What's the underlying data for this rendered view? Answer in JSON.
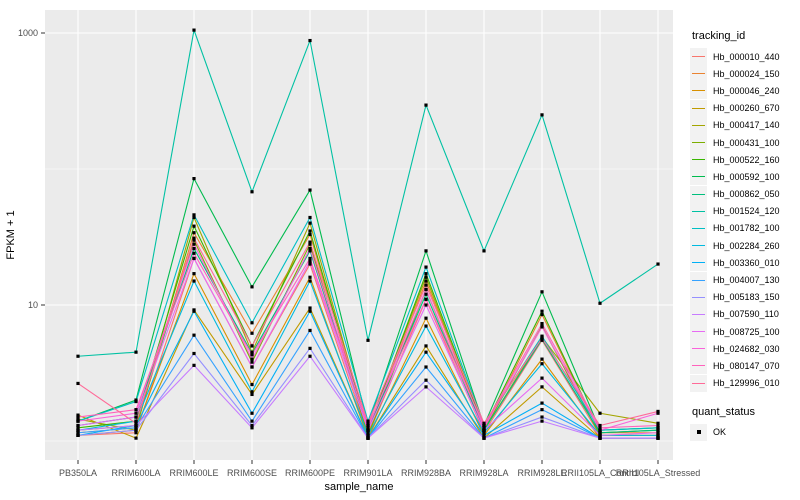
{
  "chart_data": {
    "type": "line",
    "title": "",
    "xlabel": "sample_name",
    "ylabel": "FPKM + 1",
    "y_scale": "log10",
    "ylim": [
      1,
      1480
    ],
    "y_ticks": [
      {
        "value": 10,
        "label": "10"
      },
      {
        "value": 1000,
        "label": "1000"
      }
    ],
    "y_minor_gridlines": [
      1,
      100
    ],
    "grid": true,
    "panel_bg": "#EBEBEB",
    "grid_color": "#FFFFFF",
    "tick_label_color": "#4D4D4D",
    "point_color": "#000000",
    "legend_position": "right",
    "categories": [
      "PB350LA",
      "RRIM600LA",
      "RRIM600LE",
      "RRIM600SE",
      "RRIM600PE",
      "RRIM901LA",
      "RRIM928BA",
      "RRIM928LA",
      "RRIM928LE",
      "RRII105LA_Control",
      "RRII105LA_Stressed"
    ],
    "series": [
      {
        "name": "Hb_000010_440",
        "color": "#F8766D",
        "values": [
          1.1,
          1.15,
          22,
          3.5,
          20,
          1.1,
          11,
          1.15,
          5.5,
          1.1,
          1.1
        ]
      },
      {
        "name": "Hb_000024_150",
        "color": "#EA8331",
        "values": [
          1.15,
          1.25,
          34,
          6.2,
          33,
          1.15,
          15,
          1.2,
          8.5,
          1.15,
          1.15
        ]
      },
      {
        "name": "Hb_000046_240",
        "color": "#D89000",
        "values": [
          1.1,
          1.2,
          17,
          2.6,
          16,
          1.05,
          8.0,
          1.1,
          4.0,
          1.05,
          1.05
        ]
      },
      {
        "name": "Hb_000260_670",
        "color": "#C09B00",
        "values": [
          1.55,
          1.05,
          9.2,
          2.2,
          9.5,
          1.05,
          5.0,
          1.05,
          2.5,
          1.05,
          1.05
        ]
      },
      {
        "name": "Hb_000417_140",
        "color": "#A3A500",
        "values": [
          1.45,
          1.2,
          44,
          4.5,
          40,
          1.2,
          16,
          1.2,
          5.8,
          1.6,
          1.35
        ]
      },
      {
        "name": "Hb_000431_100",
        "color": "#7CAE00",
        "values": [
          1.2,
          1.3,
          30,
          3.8,
          28,
          1.1,
          13,
          1.2,
          7.0,
          1.1,
          1.1
        ]
      },
      {
        "name": "Hb_000522_160",
        "color": "#39B600",
        "values": [
          1.25,
          1.4,
          38,
          5.0,
          35,
          1.2,
          17,
          1.25,
          9.0,
          1.15,
          1.2
        ]
      },
      {
        "name": "Hb_000592_100",
        "color": "#00BB4E",
        "values": [
          1.4,
          2.0,
          85,
          13.6,
          70,
          1.3,
          25,
          1.3,
          12.5,
          1.2,
          1.25
        ]
      },
      {
        "name": "Hb_000862_050",
        "color": "#00BF7D",
        "values": [
          1.3,
          1.5,
          26,
          4.4,
          25,
          1.2,
          12,
          1.2,
          5.6,
          1.15,
          1.2
        ]
      },
      {
        "name": "Hb_001524_120",
        "color": "#00C1A3",
        "values": [
          4.2,
          4.5,
          1050,
          68,
          880,
          5.5,
          295,
          25,
          250,
          10.3,
          20
        ]
      },
      {
        "name": "Hb_001782_100",
        "color": "#00BFC4",
        "values": [
          1.4,
          1.95,
          46,
          7.4,
          44,
          1.4,
          19,
          1.3,
          5.9,
          1.2,
          1.25
        ]
      },
      {
        "name": "Hb_002284_260",
        "color": "#00BAE0",
        "values": [
          1.2,
          1.4,
          15,
          2.3,
          15,
          1.1,
          7.0,
          1.15,
          3.7,
          1.1,
          1.1
        ]
      },
      {
        "name": "Hb_003360_010",
        "color": "#00B0F6",
        "values": [
          1.1,
          1.3,
          9.0,
          1.6,
          9.0,
          1.05,
          4.5,
          1.1,
          1.9,
          1.05,
          1.05
        ]
      },
      {
        "name": "Hb_004007_130",
        "color": "#35A2FF",
        "values": [
          1.15,
          1.25,
          6.0,
          1.4,
          6.5,
          1.05,
          3.5,
          1.05,
          1.7,
          1.05,
          1.05
        ]
      },
      {
        "name": "Hb_005183_150",
        "color": "#9590FF",
        "values": [
          1.1,
          1.2,
          4.4,
          1.3,
          4.8,
          1.05,
          2.8,
          1.05,
          1.5,
          1.05,
          1.05
        ]
      },
      {
        "name": "Hb_007590_110",
        "color": "#C77CFF",
        "values": [
          1.2,
          1.3,
          3.6,
          1.25,
          4.2,
          1.05,
          2.5,
          1.05,
          1.4,
          1.05,
          1.05
        ]
      },
      {
        "name": "Hb_008725_100",
        "color": "#E76BF3",
        "values": [
          1.3,
          1.5,
          22,
          3.5,
          21,
          1.2,
          10,
          1.2,
          2.9,
          1.1,
          1.15
        ]
      },
      {
        "name": "Hb_024682_030",
        "color": "#FA62DB",
        "values": [
          1.4,
          1.6,
          28,
          4.0,
          26,
          1.25,
          13,
          1.25,
          6.9,
          1.2,
          1.6
        ]
      },
      {
        "name": "Hb_080147_070",
        "color": "#FF62BC",
        "values": [
          1.5,
          1.7,
          24,
          4.3,
          22,
          1.3,
          11,
          1.3,
          7.3,
          1.25,
          1.3
        ]
      },
      {
        "name": "Hb_129996_010",
        "color": "#FF6A98",
        "values": [
          2.65,
          1.35,
          31,
          5.0,
          29,
          1.35,
          14,
          1.35,
          5.7,
          1.3,
          1.65
        ]
      }
    ],
    "legend": {
      "color_title": "tracking_id",
      "shape_title": "quant_status",
      "shape_items": [
        {
          "label": "OK"
        }
      ]
    }
  }
}
